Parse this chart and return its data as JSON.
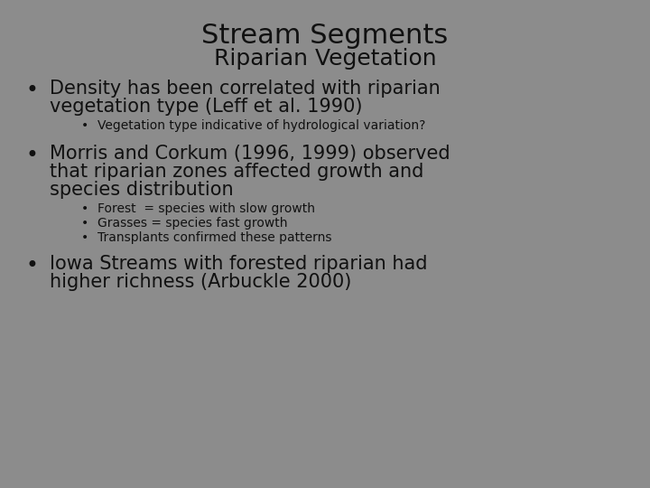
{
  "title_line1": "Stream Segments",
  "title_line2": "Riparian Vegetation",
  "background_color": "#8c8c8c",
  "text_color": "#111111",
  "title_fontsize": 22,
  "subtitle_fontsize": 18,
  "bullet_fontsize": 15,
  "subbullet_fontsize": 10,
  "bullet1_text_line1": "Density has been correlated with riparian",
  "bullet1_text_line2": "vegetation type (Leff et al. 1990)",
  "subbullet1_text": "Vegetation type indicative of hydrological variation?",
  "bullet2_text_line1": "Morris and Corkum (1996, 1999) observed",
  "bullet2_text_line2": "that riparian zones affected growth and",
  "bullet2_text_line3": "species distribution",
  "subbullet2a_text": "Forest  = species with slow growth",
  "subbullet2b_text": "Grasses = species fast growth",
  "subbullet2c_text": "Transplants confirmed these patterns",
  "bullet3_text_line1": "Iowa Streams with forested riparian had",
  "bullet3_text_line2": "higher richness (Arbuckle 2000)"
}
